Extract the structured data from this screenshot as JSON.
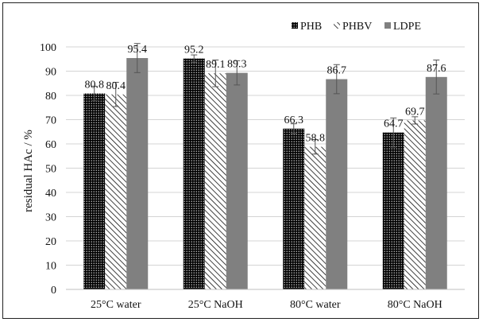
{
  "chart_data": {
    "type": "bar",
    "title": "",
    "xlabel": "",
    "ylabel": "residual HAc / %",
    "ylim": [
      0,
      100
    ],
    "yticks": [
      0,
      10,
      20,
      30,
      40,
      50,
      60,
      70,
      80,
      90,
      100
    ],
    "categories": [
      "25°C water",
      "25°C NaOH",
      "80°C water",
      "80°C NaOH"
    ],
    "legend_position": "top-right",
    "grid": true,
    "series": [
      {
        "name": "PHB",
        "values": [
          80.8,
          95.2,
          66.3,
          64.7
        ],
        "errors": [
          3.0,
          1.5,
          2.0,
          6.0
        ],
        "labels": [
          "80.8",
          "95.2",
          "66.3",
          "64.7"
        ],
        "fill": "dots",
        "color": "#000000"
      },
      {
        "name": "PHBV",
        "values": [
          80.4,
          89.1,
          58.8,
          69.7
        ],
        "errors": [
          5.0,
          5.5,
          3.0,
          1.5
        ],
        "labels": [
          "80.4",
          "89.1",
          "58.8",
          "69.7"
        ],
        "fill": "hatch",
        "color": "#111111"
      },
      {
        "name": "LDPE",
        "values": [
          95.4,
          89.3,
          86.7,
          87.6
        ],
        "errors": [
          6.0,
          5.0,
          6.0,
          7.0
        ],
        "labels": [
          "95.4",
          "89.3",
          "86.7",
          "87.6"
        ],
        "fill": "solid",
        "color": "#808080"
      }
    ]
  }
}
